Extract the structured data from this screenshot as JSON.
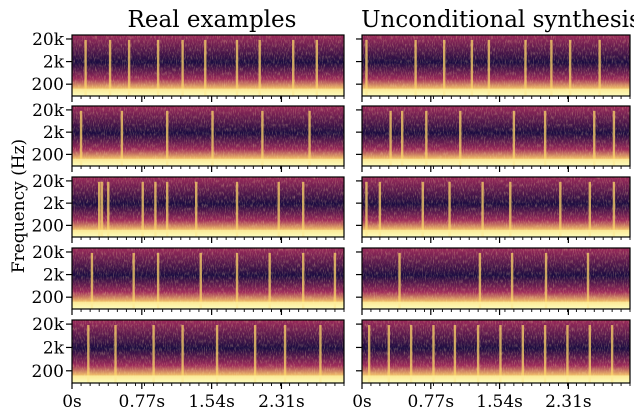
{
  "figure": {
    "y_axis_label": "Frequency (Hz)"
  },
  "chart_data": {
    "type": "heatmap",
    "description_kind": "spectrogram grid",
    "columns": [
      {
        "title": "Real examples"
      },
      {
        "title": "Unconditional synthesis"
      }
    ],
    "rows": 5,
    "y_axis": {
      "label": "Frequency (Hz)",
      "scale": "log",
      "tick_labels": [
        "20k",
        "2k",
        "200"
      ],
      "tick_values": [
        20000,
        2000,
        200
      ]
    },
    "x_axis": {
      "tick_labels": [
        "0s",
        "0.77s",
        "1.54s",
        "2.31s"
      ],
      "tick_values": [
        0,
        0.77,
        1.54,
        2.31
      ],
      "range": [
        0,
        3.0
      ]
    },
    "colormap": {
      "name": "inferno",
      "low": "#1b0c41",
      "mid": "#9c2a5a",
      "high": "#fcd56a",
      "max": "#fcfdbf"
    },
    "panels": [
      {
        "row": 0,
        "col": 0,
        "transients": [
          0.15,
          0.42,
          0.63,
          0.95,
          1.22,
          1.47,
          1.82,
          2.07,
          2.44,
          2.7
        ]
      },
      {
        "row": 0,
        "col": 1,
        "transients": [
          0.05,
          0.6,
          0.92,
          1.23,
          1.42,
          1.83,
          2.12,
          2.33,
          2.66
        ]
      },
      {
        "row": 1,
        "col": 0,
        "transients": [
          0.1,
          0.55,
          1.05,
          1.55,
          2.1,
          2.62
        ]
      },
      {
        "row": 1,
        "col": 1,
        "transients": [
          0.32,
          0.45,
          0.72,
          1.1,
          1.7,
          2.05,
          2.6,
          2.82
        ]
      },
      {
        "row": 2,
        "col": 0,
        "transients": [
          0.3,
          0.33,
          0.4,
          0.78,
          0.92,
          1.05,
          1.37,
          1.82,
          2.28,
          2.55
        ]
      },
      {
        "row": 2,
        "col": 1,
        "transients": [
          0.05,
          0.2,
          0.68,
          0.98,
          1.35,
          1.66,
          2.22,
          2.55,
          2.82
        ]
      },
      {
        "row": 3,
        "col": 0,
        "transients": [
          0.22,
          0.68,
          0.95,
          1.42,
          1.82,
          2.18,
          2.55,
          2.9
        ]
      },
      {
        "row": 3,
        "col": 1,
        "transients": [
          0.42,
          1.32,
          1.68,
          2.06,
          2.53
        ]
      },
      {
        "row": 4,
        "col": 0,
        "transients": [
          0.18,
          0.48,
          0.9,
          1.22,
          1.6,
          2.02,
          2.35,
          2.74
        ]
      },
      {
        "row": 4,
        "col": 1,
        "transients": [
          0.08,
          0.3,
          0.55,
          0.8,
          1.04,
          1.3,
          1.55,
          1.8,
          2.05,
          2.3,
          2.55,
          2.8
        ]
      }
    ]
  }
}
